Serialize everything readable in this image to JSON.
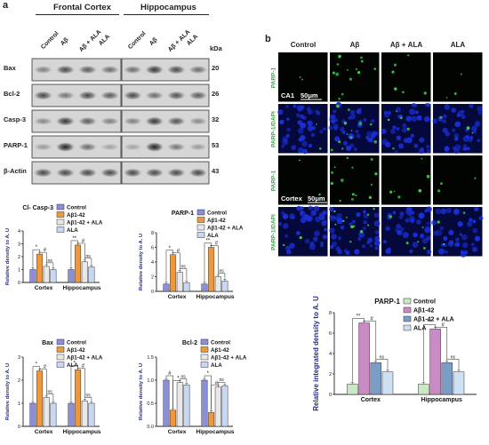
{
  "panel_a": {
    "letter": "a",
    "regions": [
      "Frontal Cortex",
      "Hippocampus"
    ],
    "lanes": [
      "Control",
      "Aβ",
      "Aβ + ALA",
      "ALA",
      "Control",
      "Aβ",
      "Aβ + ALA",
      "ALA"
    ],
    "kda_header": "kDa",
    "blots": [
      {
        "protein": "Bax",
        "kda": "20"
      },
      {
        "protein": "Bcl-2",
        "kda": "26"
      },
      {
        "protein": "Casp-3",
        "kda": "32"
      },
      {
        "protein": "PARP-1",
        "kda": "53"
      },
      {
        "protein": "β-Actin",
        "kda": "43"
      }
    ]
  },
  "panel_b": {
    "letter": "b",
    "columns": [
      "Control",
      "Aβ",
      "Aβ + ALA",
      "ALA"
    ],
    "rows": [
      "PARP-1",
      "PARP-1/DAPI",
      "PARP-1",
      "PARP-1/DAPI"
    ],
    "region_tags": [
      "CA1",
      "Cortex"
    ],
    "scale_bar": "50μm"
  },
  "colors": {
    "control": "#8a8fd8",
    "abeta": "#f0973a",
    "abeta_ala": "#e8e8e8",
    "ala": "#c9d8f2",
    "b_control": "#c9e8c4",
    "b_abeta": "#c98bc4",
    "b_abeta_ala": "#7a9cc6",
    "b_ala": "#cfe0f3",
    "dapi": "#1a2fd6",
    "parp": "#3fd24a",
    "axis_title": "#2d2f8a"
  },
  "chart_data": [
    {
      "type": "bar",
      "title": "Cl- Casp-3",
      "ylabel": "Relative density to A. U",
      "categories": [
        "Cortex",
        "Hippocampus"
      ],
      "ylim": [
        0,
        4
      ],
      "yticks": [
        "0",
        "1",
        "2",
        "3",
        "4"
      ],
      "series": [
        {
          "name": "Control",
          "values": [
            1.0,
            1.0
          ]
        },
        {
          "name": "Aβ1-42",
          "values": [
            2.2,
            2.9
          ]
        },
        {
          "name": "Aβ1-42 + ALA",
          "values": [
            1.25,
            1.6
          ]
        },
        {
          "name": "ALA",
          "values": [
            1.0,
            1.2
          ]
        }
      ],
      "annotations": [
        "*",
        "#",
        "ns",
        "**",
        "#",
        "ns"
      ]
    },
    {
      "type": "bar",
      "title": "PARP-1",
      "ylabel": "Relative density to A. U",
      "categories": [
        "Cortex",
        "Hippocampus"
      ],
      "ylim": [
        0,
        8
      ],
      "yticks": [
        "0",
        "2",
        "4",
        "6",
        "8"
      ],
      "series": [
        {
          "name": "Control",
          "values": [
            1.0,
            1.0
          ]
        },
        {
          "name": "Aβ1-42",
          "values": [
            5.0,
            6.0
          ]
        },
        {
          "name": "Aβ1-42 + ALA",
          "values": [
            2.6,
            2.0
          ]
        },
        {
          "name": "ALA",
          "values": [
            1.2,
            1.4
          ]
        }
      ],
      "annotations": [
        "*",
        "#",
        "ns",
        "**",
        "#",
        "ns"
      ]
    },
    {
      "type": "bar",
      "title": "Bax",
      "ylabel": "Relative density to A. U",
      "categories": [
        "Cortex",
        "Hippocampus"
      ],
      "ylim": [
        0,
        3
      ],
      "yticks": [
        "0",
        "1",
        "2",
        "3"
      ],
      "series": [
        {
          "name": "Control",
          "values": [
            1.0,
            1.0
          ]
        },
        {
          "name": "Aβ1-42",
          "values": [
            2.4,
            2.45
          ]
        },
        {
          "name": "Aβ1-42 + ALA",
          "values": [
            1.25,
            1.1
          ]
        },
        {
          "name": "ALA",
          "values": [
            1.0,
            1.0
          ]
        }
      ],
      "annotations": [
        "*",
        "#",
        "ns",
        "*",
        "#",
        "ns"
      ]
    },
    {
      "type": "bar",
      "title": "Bcl-2",
      "ylabel": "Relative density to A. U",
      "categories": [
        "Cortex",
        "Hippocampus"
      ],
      "ylim": [
        0,
        1.5
      ],
      "yticks": [
        "0.0",
        "0.5",
        "1.0",
        "1.5"
      ],
      "series": [
        {
          "name": "Control",
          "values": [
            1.0,
            1.0
          ]
        },
        {
          "name": "Aβ1-42",
          "values": [
            0.35,
            0.3
          ]
        },
        {
          "name": "Aβ1-42 + ALA",
          "values": [
            0.95,
            0.85
          ]
        },
        {
          "name": "ALA",
          "values": [
            0.9,
            0.88
          ]
        }
      ],
      "annotations": [
        "#",
        "*",
        "ns",
        "*",
        "#",
        "ns"
      ]
    },
    {
      "type": "bar",
      "title": "PARP-1",
      "ylabel": "Relative integrated density to A. U",
      "categories": [
        "Cortex",
        "Hippocampus"
      ],
      "ylim": [
        0,
        8
      ],
      "yticks": [
        "0",
        "2",
        "4",
        "6",
        "8"
      ],
      "series": [
        {
          "name": "Control",
          "values": [
            1.0,
            1.0
          ]
        },
        {
          "name": "Aβ1-42",
          "values": [
            7.0,
            6.4
          ]
        },
        {
          "name": "Aβ1-42 + ALA",
          "values": [
            3.1,
            3.1
          ]
        },
        {
          "name": "ALA",
          "values": [
            2.2,
            2.2
          ]
        }
      ],
      "annotations": [
        "**",
        "#",
        "ns",
        "**",
        "#",
        "ns"
      ]
    }
  ]
}
